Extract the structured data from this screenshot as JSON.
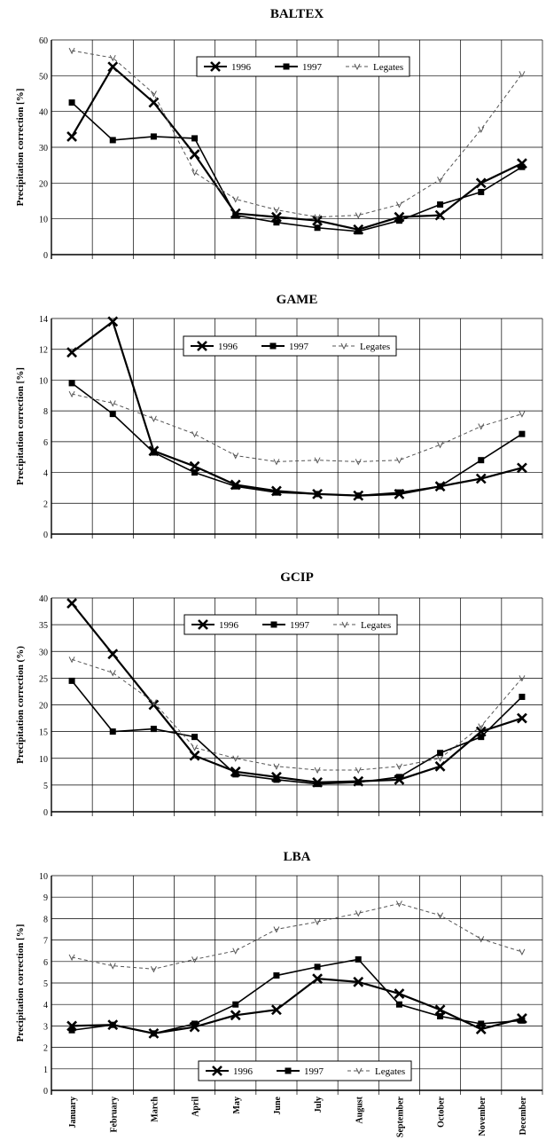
{
  "style": {
    "ink": "#000000",
    "grid": "#000000",
    "legates_color": "#555555"
  },
  "months": [
    "January",
    "February",
    "March",
    "April",
    "May",
    "June",
    "July",
    "August",
    "September",
    "October",
    "November",
    "December"
  ],
  "chart_data": [
    {
      "type": "line",
      "title": "BALTEX",
      "ylabel": "Precipitation correction [%]",
      "ylim": [
        0,
        60
      ],
      "yticks": [
        0,
        10,
        20,
        30,
        40,
        50,
        60
      ],
      "grid": true,
      "legend": "top-center",
      "x": [
        "January",
        "February",
        "March",
        "April",
        "May",
        "June",
        "July",
        "August",
        "September",
        "October",
        "November",
        "December"
      ],
      "series": [
        {
          "name": "1996",
          "marker": "x",
          "values": [
            33,
            52.5,
            42.5,
            28,
            11.5,
            10.5,
            9.5,
            7,
            10.5,
            11,
            20,
            25.5
          ]
        },
        {
          "name": "1997",
          "marker": "square",
          "values": [
            42.5,
            32,
            33,
            32.5,
            11,
            9,
            7.5,
            6.5,
            9.5,
            14,
            17.5,
            24.5
          ]
        },
        {
          "name": "Legates",
          "marker": "tick",
          "dashed": true,
          "values": [
            57,
            55,
            45,
            23,
            15.5,
            12.5,
            10.5,
            11,
            14,
            21,
            35,
            50.5
          ]
        }
      ]
    },
    {
      "type": "line",
      "title": "GAME",
      "ylabel": "Precipitation correction [%]",
      "ylim": [
        0,
        14
      ],
      "yticks": [
        0,
        2,
        4,
        6,
        8,
        10,
        12,
        14
      ],
      "grid": true,
      "legend": "top-center",
      "x": [
        "January",
        "February",
        "March",
        "April",
        "May",
        "June",
        "July",
        "August",
        "September",
        "October",
        "November",
        "December"
      ],
      "series": [
        {
          "name": "1996",
          "marker": "x",
          "values": [
            11.8,
            13.8,
            5.4,
            4.4,
            3.2,
            2.8,
            2.6,
            2.5,
            2.6,
            3.1,
            3.6,
            4.3
          ]
        },
        {
          "name": "1997",
          "marker": "square",
          "values": [
            9.8,
            7.8,
            5.3,
            4.0,
            3.1,
            2.7,
            2.6,
            2.5,
            2.7,
            3.1,
            4.8,
            6.5
          ]
        },
        {
          "name": "Legates",
          "marker": "tick",
          "dashed": true,
          "values": [
            9.1,
            8.5,
            7.5,
            6.5,
            5.1,
            4.7,
            4.8,
            4.7,
            4.8,
            5.8,
            7.0,
            7.8
          ]
        }
      ]
    },
    {
      "type": "line",
      "title": "GCIP",
      "ylabel": "Precipitation correction (%)",
      "ylim": [
        0,
        40
      ],
      "yticks": [
        0,
        5,
        10,
        15,
        20,
        25,
        30,
        35,
        40
      ],
      "grid": true,
      "legend": "top-center",
      "x": [
        "January",
        "February",
        "March",
        "April",
        "May",
        "June",
        "July",
        "August",
        "September",
        "October",
        "November",
        "December"
      ],
      "series": [
        {
          "name": "1996",
          "marker": "x",
          "values": [
            39,
            29.5,
            20,
            10.5,
            7.5,
            6.5,
            5.5,
            5.7,
            6,
            8.5,
            15,
            17.5
          ]
        },
        {
          "name": "1997",
          "marker": "square",
          "values": [
            24.5,
            15,
            15.5,
            14,
            7,
            6,
            5.2,
            5.5,
            6.5,
            11,
            14,
            21.5
          ]
        },
        {
          "name": "Legates",
          "marker": "tick",
          "dashed": true,
          "values": [
            28.5,
            26,
            20.5,
            12,
            10,
            8.5,
            7.8,
            7.8,
            8.5,
            10,
            16,
            25
          ]
        }
      ]
    },
    {
      "type": "line",
      "title": "LBA",
      "ylabel": "Precipitation correction [%]",
      "ylim": [
        0,
        10
      ],
      "yticks": [
        0,
        1,
        2,
        3,
        4,
        5,
        6,
        7,
        8,
        9,
        10
      ],
      "grid": true,
      "legend": "bottom-center",
      "x": [
        "January",
        "February",
        "March",
        "April",
        "May",
        "June",
        "July",
        "August",
        "September",
        "October",
        "November",
        "December"
      ],
      "series": [
        {
          "name": "1996",
          "marker": "x",
          "values": [
            3.0,
            3.05,
            2.65,
            2.95,
            3.5,
            3.75,
            5.2,
            5.05,
            4.5,
            3.75,
            2.85,
            3.35
          ]
        },
        {
          "name": "1997",
          "marker": "square",
          "values": [
            2.8,
            3.05,
            2.65,
            3.1,
            4.0,
            5.35,
            5.75,
            6.1,
            4.0,
            3.45,
            3.1,
            3.25
          ]
        },
        {
          "name": "Legates",
          "marker": "tick",
          "dashed": true,
          "values": [
            6.2,
            5.8,
            5.65,
            6.1,
            6.5,
            7.5,
            7.85,
            8.25,
            8.7,
            8.15,
            7.05,
            6.45
          ]
        }
      ]
    }
  ]
}
